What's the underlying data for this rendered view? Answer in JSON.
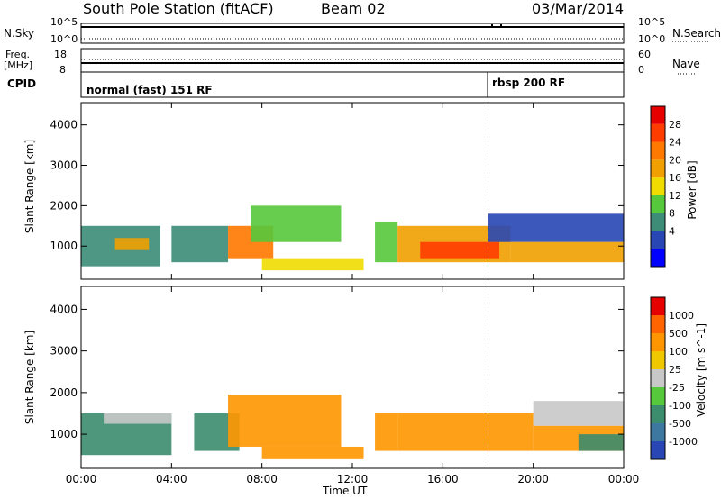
{
  "header": {
    "station": "South Pole Station (fitACF)",
    "beam": "Beam 02",
    "date": "03/Mar/2014"
  },
  "top_panels": {
    "nsky_label": "N.Sky",
    "nsearch_label": "N.Search",
    "nsky_ticks": [
      "10^5",
      "10^0"
    ],
    "nsearch_ticks": [
      "10^5",
      "10^0"
    ],
    "freq_label": "Freq.",
    "freq_unit": "[MHz]",
    "freq_ticks": [
      "18",
      "8"
    ],
    "nave_label": "Nave",
    "nave_ticks": [
      "60",
      "0"
    ],
    "cpid_label": "CPID",
    "cpid_modes": [
      {
        "name": "normal (fast) 151 RF",
        "start_hour": 0
      },
      {
        "name": "rbsp 200 RF",
        "start_hour": 18
      }
    ]
  },
  "chart_data": [
    {
      "type": "heatmap",
      "title": "",
      "xlabel": "Time UT",
      "ylabel": "Slant Range [km]",
      "xlim": [
        0,
        24
      ],
      "ylim": [
        180,
        4550
      ],
      "x_ticks": [
        "00:00",
        "04:00",
        "08:00",
        "12:00",
        "16:00",
        "20:00",
        "00:00"
      ],
      "y_ticks": [
        1000,
        2000,
        3000,
        4000
      ],
      "colorbar": {
        "label": "Power [dB]",
        "ticks": [
          "28",
          "24",
          "20",
          "16",
          "12",
          "8",
          "4"
        ],
        "colors": [
          "#0000ff",
          "#2846b4",
          "#3c8c78",
          "#55c83c",
          "#f0dc00",
          "#f0a000",
          "#ff7800",
          "#ff3c00",
          "#e60000"
        ]
      },
      "regions": [
        {
          "x_start": 0.0,
          "x_end": 3.5,
          "y_min": 500,
          "y_max": 1500,
          "value": 10
        },
        {
          "x_start": 1.5,
          "x_end": 3.0,
          "y_min": 900,
          "y_max": 1200,
          "value": 20
        },
        {
          "x_start": 4.0,
          "x_end": 6.5,
          "y_min": 600,
          "y_max": 1500,
          "value": 9
        },
        {
          "x_start": 6.5,
          "x_end": 8.5,
          "y_min": 700,
          "y_max": 1500,
          "value": 24
        },
        {
          "x_start": 7.5,
          "x_end": 11.5,
          "y_min": 1100,
          "y_max": 2000,
          "value": 14
        },
        {
          "x_start": 8.0,
          "x_end": 12.5,
          "y_min": 400,
          "y_max": 700,
          "value": 16
        },
        {
          "x_start": 13.0,
          "x_end": 14.0,
          "y_min": 600,
          "y_max": 1600,
          "value": 12
        },
        {
          "x_start": 14.0,
          "x_end": 19.0,
          "y_min": 600,
          "y_max": 1500,
          "value": 20
        },
        {
          "x_start": 15.0,
          "x_end": 18.5,
          "y_min": 700,
          "y_max": 1100,
          "value": 26
        },
        {
          "x_start": 18.0,
          "x_end": 24.0,
          "y_min": 1100,
          "y_max": 1800,
          "value": 6
        },
        {
          "x_start": 19.0,
          "x_end": 24.0,
          "y_min": 600,
          "y_max": 1100,
          "value": 18
        }
      ]
    },
    {
      "type": "heatmap",
      "title": "",
      "xlabel": "Time UT",
      "ylabel": "Slant Range [km]",
      "xlim": [
        0,
        24
      ],
      "ylim": [
        180,
        4550
      ],
      "x_ticks": [
        "00:00",
        "04:00",
        "08:00",
        "12:00",
        "16:00",
        "20:00",
        "00:00"
      ],
      "y_ticks": [
        1000,
        2000,
        3000,
        4000
      ],
      "colorbar": {
        "label": "Velocity [m s^-1]",
        "ticks": [
          "1000",
          "500",
          "100",
          "25",
          "-25",
          "-100",
          "-500",
          "-1000"
        ],
        "colors": [
          "#2846b4",
          "#3c78a0",
          "#3c8c6e",
          "#55c83c",
          "#c8c8c8",
          "#f0c800",
          "#ff9600",
          "#ff6400",
          "#e60000"
        ]
      },
      "regions": [
        {
          "x_start": 0.0,
          "x_end": 4.0,
          "y_min": 500,
          "y_max": 1500,
          "value": 150
        },
        {
          "x_start": 1.0,
          "x_end": 4.0,
          "y_min": 1250,
          "y_max": 1500,
          "value": 0
        },
        {
          "x_start": 5.0,
          "x_end": 7.0,
          "y_min": 600,
          "y_max": 1500,
          "value": 200
        },
        {
          "x_start": 6.5,
          "x_end": 11.5,
          "y_min": 700,
          "y_max": 1950,
          "value": -350
        },
        {
          "x_start": 8.0,
          "x_end": 12.5,
          "y_min": 400,
          "y_max": 700,
          "value": -300
        },
        {
          "x_start": 13.0,
          "x_end": 14.0,
          "y_min": 600,
          "y_max": 1500,
          "value": -300
        },
        {
          "x_start": 14.0,
          "x_end": 20.0,
          "y_min": 600,
          "y_max": 1500,
          "value": -350
        },
        {
          "x_start": 20.0,
          "x_end": 24.0,
          "y_min": 1200,
          "y_max": 1800,
          "value": 0
        },
        {
          "x_start": 20.0,
          "x_end": 24.0,
          "y_min": 600,
          "y_max": 1200,
          "value": -200
        },
        {
          "x_start": 22.0,
          "x_end": 24.0,
          "y_min": 600,
          "y_max": 1000,
          "value": 150
        }
      ]
    }
  ]
}
